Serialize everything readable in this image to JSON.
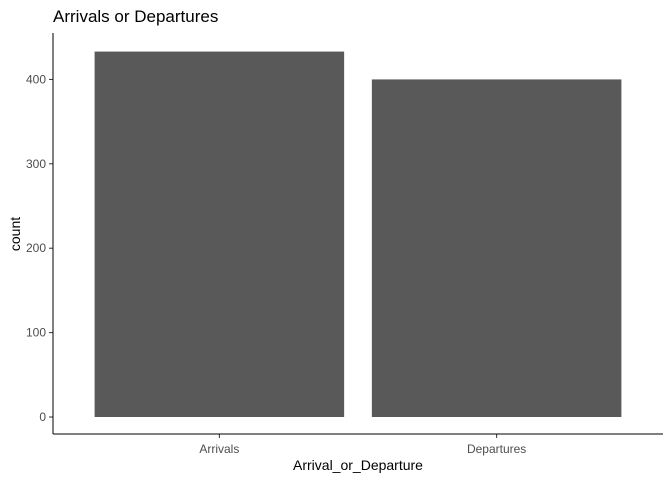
{
  "chart_data": {
    "type": "bar",
    "title": "Arrivals or Departures",
    "xlabel": "Arrival_or_Departure",
    "ylabel": "count",
    "categories": [
      "Arrivals",
      "Departures"
    ],
    "values": [
      433,
      400
    ],
    "ylim": [
      0,
      455
    ],
    "yticks": [
      0,
      100,
      200,
      300,
      400
    ],
    "bar_color": "#595959",
    "grid": false,
    "legend": "none"
  }
}
